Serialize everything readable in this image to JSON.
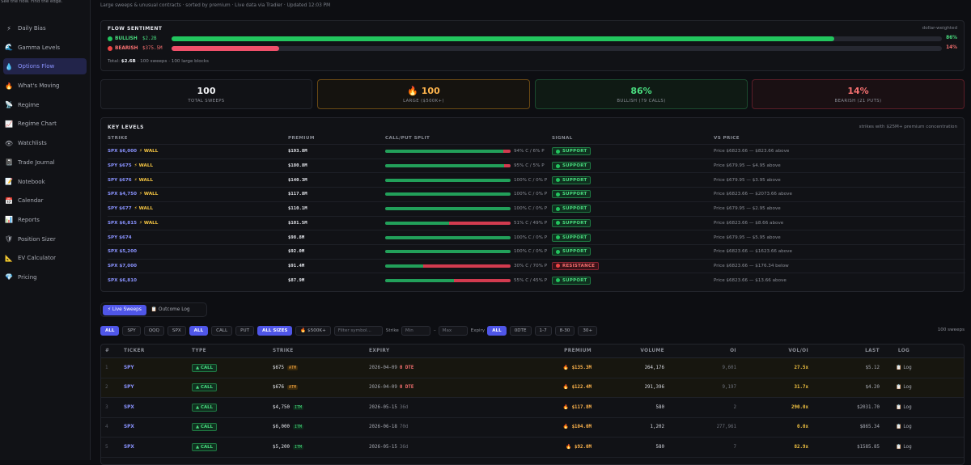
{
  "sidebar": {
    "top_text": "See the flow. Find the edge.",
    "items": [
      {
        "label": "Daily Bias",
        "icon": "lightning-icon",
        "glyph": "⚡"
      },
      {
        "label": "Gamma Levels",
        "icon": "wave-icon",
        "glyph": "🌊"
      },
      {
        "label": "Options Flow",
        "icon": "droplet-icon",
        "glyph": "💧"
      },
      {
        "label": "What's Moving",
        "icon": "fire-icon",
        "glyph": "🔥"
      },
      {
        "label": "Regime",
        "icon": "satellite-icon",
        "glyph": "📡"
      },
      {
        "label": "Regime Chart",
        "icon": "chart-icon",
        "glyph": "📈"
      },
      {
        "label": "Watchlists",
        "icon": "eye-icon",
        "glyph": "👁"
      },
      {
        "label": "Trade Journal",
        "icon": "journal-icon",
        "glyph": "📓"
      },
      {
        "label": "Notebook",
        "icon": "notebook-icon",
        "glyph": "📝"
      },
      {
        "label": "Calendar",
        "icon": "calendar-icon",
        "glyph": "📅"
      },
      {
        "label": "Reports",
        "icon": "bar-chart-icon",
        "glyph": "📊"
      },
      {
        "label": "Position Sizer",
        "icon": "shield-icon",
        "glyph": "🛡"
      },
      {
        "label": "EV Calculator",
        "icon": "ruler-icon",
        "glyph": "📐"
      },
      {
        "label": "Pricing",
        "icon": "diamond-icon",
        "glyph": "💎"
      }
    ]
  },
  "subtitle": "Large sweeps & unusual contracts · sorted by premium · Live data via Tradier · Updated 12:03 PM",
  "flow_sentiment": {
    "title": "FLOW SENTIMENT",
    "note": "dollar-weighted",
    "bullish_label": "BULLISH",
    "bullish_amount": "$2.2B",
    "bullish_pct": "86%",
    "bullish_fraction": 0.86,
    "bearish_label": "BEARISH",
    "bearish_amount": "$375.5M",
    "bearish_pct": "14%",
    "bearish_fraction": 0.14,
    "total_label": "Total:",
    "total_value": "$2.6B",
    "total_detail": "· 100 sweeps · 100 large blocks",
    "colors": {
      "bull": "#22c55e",
      "bear": "#ef4444"
    }
  },
  "stats": [
    {
      "value": "100",
      "label": "TOTAL SWEEPS"
    },
    {
      "value": "100",
      "label": "LARGE ($500K+)"
    },
    {
      "value": "86%",
      "label": "BULLISH (79 CALLS)"
    },
    {
      "value": "14%",
      "label": "BEARISH (21 PUTS)"
    }
  ],
  "key_levels": {
    "title": "KEY LEVELS",
    "note": "strikes with $25M+ premium concentration",
    "columns": [
      "STRIKE",
      "PREMIUM",
      "CALL/PUT SPLIT",
      "SIGNAL",
      "VS PRICE"
    ],
    "wall_label": "WALL",
    "rows": [
      {
        "strike": "SPX $6,000",
        "wall": true,
        "premium": "$193.8M",
        "call": 0.94,
        "split": "94% C / 6% P",
        "signal": "SUPPORT",
        "vs": "Price $6823.66 — $823.66 above"
      },
      {
        "strike": "SPY $675",
        "wall": true,
        "premium": "$180.8M",
        "call": 0.95,
        "split": "95% C / 5% P",
        "signal": "SUPPORT",
        "vs": "Price $679.95 — $4.95 above"
      },
      {
        "strike": "SPY $676",
        "wall": true,
        "premium": "$140.3M",
        "call": 1.0,
        "split": "100% C / 0% P",
        "signal": "SUPPORT",
        "vs": "Price $679.95 — $3.95 above"
      },
      {
        "strike": "SPX $4,750",
        "wall": true,
        "premium": "$117.8M",
        "call": 1.0,
        "split": "100% C / 0% P",
        "signal": "SUPPORT",
        "vs": "Price $6823.66 — $2073.66 above"
      },
      {
        "strike": "SPY $677",
        "wall": true,
        "premium": "$110.1M",
        "call": 1.0,
        "split": "100% C / 0% P",
        "signal": "SUPPORT",
        "vs": "Price $679.95 — $2.95 above"
      },
      {
        "strike": "SPX $6,815",
        "wall": true,
        "premium": "$101.5M",
        "call": 0.51,
        "split": "51% C / 49% P",
        "signal": "SUPPORT",
        "vs": "Price $6823.66 — $8.66 above"
      },
      {
        "strike": "SPY $674",
        "wall": false,
        "premium": "$98.8M",
        "call": 1.0,
        "split": "100% C / 0% P",
        "signal": "SUPPORT",
        "vs": "Price $679.95 — $5.95 above"
      },
      {
        "strike": "SPX $5,200",
        "wall": false,
        "premium": "$92.0M",
        "call": 1.0,
        "split": "100% C / 0% P",
        "signal": "SUPPORT",
        "vs": "Price $6823.66 — $1623.66 above"
      },
      {
        "strike": "SPX $7,000",
        "wall": false,
        "premium": "$91.4M",
        "call": 0.3,
        "split": "30% C / 70% P",
        "signal": "RESISTANCE",
        "vs": "Price $6823.66 — $176.34 below"
      },
      {
        "strike": "SPX $6,810",
        "wall": false,
        "premium": "$87.9M",
        "call": 0.55,
        "split": "55% C / 45% P",
        "signal": "SUPPORT",
        "vs": "Price $6823.66 — $13.66 above"
      }
    ]
  },
  "tabs": [
    {
      "label": "⚡ Live Sweeps",
      "active": true
    },
    {
      "label": "📋 Outcome Log",
      "active": false
    }
  ],
  "filters": {
    "tickers": [
      "ALL",
      "SPY",
      "QQQ",
      "SPX"
    ],
    "types": [
      "ALL",
      "CALL",
      "PUT"
    ],
    "sizes": [
      "ALL SIZES",
      "🔥 $500K+"
    ],
    "symbol_placeholder": "Filter symbol...",
    "strike_label": "Strike",
    "min_placeholder": "Min",
    "dash": "–",
    "max_placeholder": "Max",
    "expiry_label": "Expiry",
    "expiries": [
      "ALL",
      "0DTE",
      "1-7",
      "8-30",
      "30+"
    ],
    "count": "100 sweeps"
  },
  "sweeps": {
    "columns": [
      "#",
      "TICKER",
      "TYPE",
      "STRIKE",
      "EXPIRY",
      "PREMIUM",
      "VOLUME",
      "OI",
      "VOL/OI",
      "LAST",
      "LOG"
    ],
    "log_label": "📋 Log",
    "rows": [
      {
        "idx": "1",
        "ticker": "SPY",
        "type": "▲ CALL",
        "strike": "$675",
        "tag": "ATM",
        "expiry": "2026-04-09",
        "dte": "0 DTE",
        "dte_zero": true,
        "premium": "🔥 $135.3M",
        "volume": "264,176",
        "oi": "9,601",
        "voi": "27.5x",
        "last": "$5.12"
      },
      {
        "idx": "2",
        "ticker": "SPY",
        "type": "▲ CALL",
        "strike": "$676",
        "tag": "ATM",
        "expiry": "2026-04-09",
        "dte": "0 DTE",
        "dte_zero": true,
        "premium": "🔥 $122.4M",
        "volume": "291,396",
        "oi": "9,197",
        "voi": "31.7x",
        "last": "$4.20"
      },
      {
        "idx": "3",
        "ticker": "SPX",
        "type": "▲ CALL",
        "strike": "$4,750",
        "tag": "ITM",
        "expiry": "2026-05-15",
        "dte": "36d",
        "dte_zero": false,
        "premium": "🔥 $117.8M",
        "volume": "580",
        "oi": "2",
        "voi": "290.0x",
        "last": "$2031.70"
      },
      {
        "idx": "4",
        "ticker": "SPX",
        "type": "▲ CALL",
        "strike": "$6,000",
        "tag": "ITM",
        "expiry": "2026-06-18",
        "dte": "70d",
        "dte_zero": false,
        "premium": "🔥 $104.0M",
        "volume": "1,202",
        "oi": "277,961",
        "voi": "0.0x",
        "last": "$865.34"
      },
      {
        "idx": "5",
        "ticker": "SPX",
        "type": "▲ CALL",
        "strike": "$5,200",
        "tag": "ITM",
        "expiry": "2026-05-15",
        "dte": "36d",
        "dte_zero": false,
        "premium": "🔥 $92.0M",
        "volume": "580",
        "oi": "7",
        "voi": "82.9x",
        "last": "$1585.85"
      }
    ]
  }
}
